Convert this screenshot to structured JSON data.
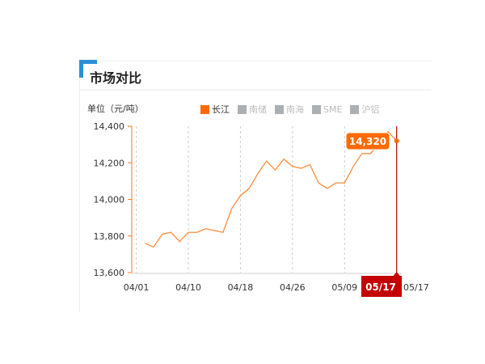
{
  "header": {
    "title": "市场对比"
  },
  "unit_label": "单位（元/吨）",
  "legend": [
    {
      "label": "长江",
      "active": true,
      "color": "#ff6a00"
    },
    {
      "label": "南储",
      "active": false
    },
    {
      "label": "南海",
      "active": false
    },
    {
      "label": "SME",
      "active": false
    },
    {
      "label": "沪铝",
      "active": false
    }
  ],
  "tooltip": {
    "value": "14,320",
    "date": "05/17"
  },
  "chart_data": {
    "type": "line",
    "title": "",
    "xlabel": "",
    "ylabel": "单位（元/吨）",
    "ylim": [
      13600,
      14400
    ],
    "yticks": [
      "13,600",
      "13,800",
      "14,000",
      "14,200",
      "14,400"
    ],
    "xticks": [
      "04/01",
      "04/10",
      "04/18",
      "04/26",
      "05/09",
      "05/17"
    ],
    "grid": "vertical dashed",
    "legend_position": "top",
    "series": [
      {
        "name": "长江",
        "color": "#ff8c3a",
        "x": [
          "04/02",
          "04/03",
          "04/07",
          "04/08",
          "04/09",
          "04/10",
          "04/13",
          "04/14",
          "04/15",
          "04/16",
          "04/17",
          "04/18",
          "04/20",
          "04/21",
          "04/22",
          "04/23",
          "04/24",
          "04/26",
          "04/27",
          "04/28",
          "04/29",
          "04/30",
          "05/08",
          "05/09",
          "05/11",
          "05/12",
          "05/13",
          "05/14",
          "05/15",
          "05/17"
        ],
        "values": [
          13760,
          13740,
          13810,
          13820,
          13770,
          13820,
          13820,
          13840,
          13830,
          13820,
          13950,
          14020,
          14060,
          14140,
          14210,
          14160,
          14220,
          14180,
          14170,
          14190,
          14090,
          14060,
          14090,
          14090,
          14180,
          14250,
          14250,
          14310,
          14370,
          14320
        ]
      }
    ]
  }
}
